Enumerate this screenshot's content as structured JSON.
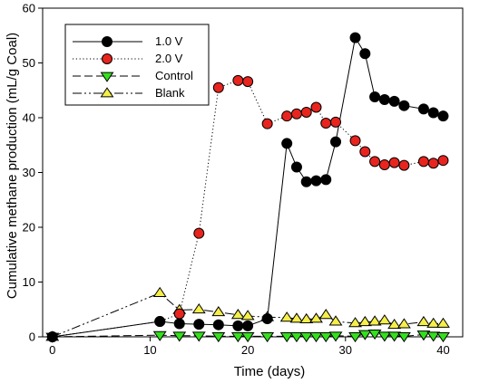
{
  "chart_data": {
    "type": "line",
    "xlabel": "Time (days)",
    "ylabel": "Cumulative methane production (mL/g Coal)",
    "xlim": [
      -1,
      42
    ],
    "ylim": [
      0,
      60
    ],
    "xticks": [
      0,
      10,
      20,
      30,
      40
    ],
    "yticks": [
      0,
      10,
      20,
      30,
      40,
      50,
      60
    ],
    "grid": false,
    "legend_position": "top-left",
    "series": [
      {
        "name": "1.0 V",
        "line_style": "solid",
        "marker": "circle",
        "marker_color": "#000000",
        "x": [
          0,
          11,
          13,
          15,
          17,
          19,
          20,
          22,
          24,
          25,
          26,
          27,
          28,
          29,
          31,
          32,
          33,
          34,
          35,
          36,
          38,
          39,
          40
        ],
        "y": [
          0,
          2.8,
          2.4,
          2.3,
          2.2,
          2.0,
          2.0,
          3.3,
          35.3,
          31.0,
          28.3,
          28.5,
          28.7,
          35.6,
          54.6,
          51.7,
          43.8,
          43.3,
          43.0,
          42.2,
          41.6,
          40.9,
          40.3
        ]
      },
      {
        "name": "2.0 V",
        "line_style": "dotted",
        "marker": "circle",
        "marker_color": "#e8241e",
        "x": [
          0,
          11,
          13,
          15,
          17,
          19,
          20,
          22,
          24,
          25,
          26,
          27,
          28,
          29,
          31,
          32,
          33,
          34,
          35,
          36,
          38,
          39,
          40
        ],
        "y": [
          0,
          2.8,
          4.2,
          18.9,
          45.5,
          46.8,
          46.6,
          38.9,
          40.3,
          40.7,
          41.0,
          41.9,
          39.0,
          39.2,
          35.8,
          33.8,
          32.0,
          31.4,
          31.8,
          31.3,
          32.0,
          31.7,
          32.2
        ]
      },
      {
        "name": "Control",
        "line_style": "dashed",
        "marker": "triangle-down",
        "marker_color": "#33e01c",
        "x": [
          0,
          11,
          13,
          15,
          17,
          19,
          20,
          22,
          24,
          25,
          26,
          27,
          28,
          29,
          31,
          32,
          33,
          34,
          35,
          36,
          38,
          39,
          40
        ],
        "y": [
          0,
          0.3,
          0.2,
          0.2,
          0.1,
          0.1,
          0.1,
          0.1,
          0.1,
          0.1,
          0.1,
          0.1,
          0.1,
          0.2,
          0.1,
          0.5,
          0.6,
          0.2,
          0.2,
          0.1,
          0.4,
          0.2,
          0.1
        ]
      },
      {
        "name": "Blank",
        "line_style": "dash-dot-dot",
        "marker": "triangle-up",
        "marker_color": "#f5ef4a",
        "x": [
          0,
          11,
          13,
          15,
          17,
          19,
          20,
          22,
          24,
          25,
          26,
          27,
          28,
          29,
          31,
          32,
          33,
          34,
          35,
          36,
          38,
          39,
          40
        ],
        "y": [
          0,
          8.0,
          4.9,
          5.0,
          4.5,
          4.0,
          3.8,
          3.6,
          3.5,
          3.3,
          3.2,
          3.3,
          4.0,
          2.8,
          2.5,
          2.7,
          2.8,
          3.0,
          2.2,
          2.3,
          2.7,
          2.4,
          2.4
        ]
      }
    ]
  }
}
